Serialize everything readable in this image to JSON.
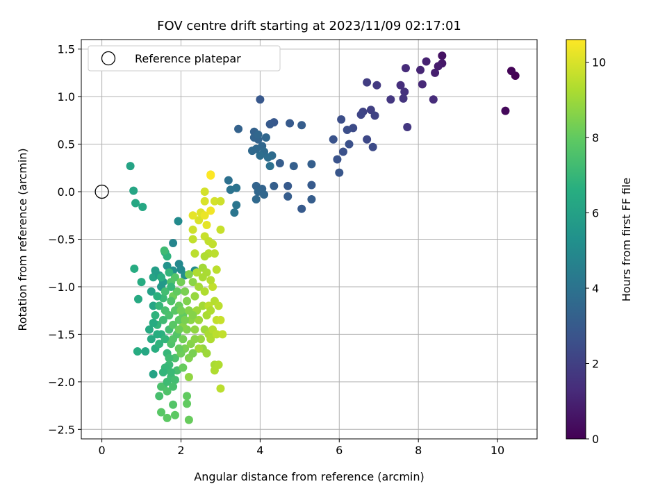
{
  "chart_data": {
    "type": "scatter",
    "title": "FOV centre drift starting at 2023/11/09 02:17:01",
    "xlabel": "Angular distance from reference (arcmin)",
    "ylabel": "Rotation from reference (arcmin)",
    "xlim": [
      -0.52,
      11.0
    ],
    "ylim": [
      -2.6,
      1.6
    ],
    "xticks": [
      0,
      2,
      4,
      6,
      8,
      10
    ],
    "yticks": [
      -2.5,
      -2.0,
      -1.5,
      -1.0,
      -0.5,
      0.0,
      0.5,
      1.0,
      1.5
    ],
    "xtick_labels": [
      "0",
      "2",
      "4",
      "6",
      "8",
      "10"
    ],
    "ytick_labels": [
      "−2.5",
      "−2.0",
      "−1.5",
      "−1.0",
      "−0.5",
      "0.0",
      "0.5",
      "1.0",
      "1.5"
    ],
    "grid": true,
    "legend": {
      "placement": "upper-left",
      "entries": [
        "Reference platepar"
      ]
    },
    "reference_point": {
      "x": 0.0,
      "y": 0.0
    },
    "colormap": "viridis",
    "colorbar": {
      "label": "Hours from first FF file",
      "range": [
        0,
        10.6
      ],
      "ticks": [
        0,
        2,
        4,
        6,
        8,
        10
      ],
      "tick_labels": [
        "0",
        "2",
        "4",
        "6",
        "8",
        "10"
      ]
    },
    "points": [
      {
        "x": 10.45,
        "y": 1.22,
        "c": 0.0
      },
      {
        "x": 10.35,
        "y": 1.27,
        "c": 0.1
      },
      {
        "x": 10.2,
        "y": 0.85,
        "c": 0.2
      },
      {
        "x": 8.6,
        "y": 1.43,
        "c": 0.5
      },
      {
        "x": 8.6,
        "y": 1.35,
        "c": 0.7
      },
      {
        "x": 8.42,
        "y": 1.25,
        "c": 0.9
      },
      {
        "x": 8.5,
        "y": 1.32,
        "c": 0.8
      },
      {
        "x": 8.2,
        "y": 1.37,
        "c": 1.0
      },
      {
        "x": 8.05,
        "y": 1.28,
        "c": 1.1
      },
      {
        "x": 8.1,
        "y": 1.13,
        "c": 1.2
      },
      {
        "x": 8.38,
        "y": 0.97,
        "c": 1.3
      },
      {
        "x": 7.68,
        "y": 1.3,
        "c": 1.3
      },
      {
        "x": 7.55,
        "y": 1.12,
        "c": 1.4
      },
      {
        "x": 7.65,
        "y": 1.05,
        "c": 1.5
      },
      {
        "x": 7.62,
        "y": 0.98,
        "c": 1.6
      },
      {
        "x": 7.72,
        "y": 0.68,
        "c": 1.7
      },
      {
        "x": 7.3,
        "y": 0.97,
        "c": 1.7
      },
      {
        "x": 6.95,
        "y": 1.12,
        "c": 1.8
      },
      {
        "x": 6.7,
        "y": 1.15,
        "c": 1.9
      },
      {
        "x": 6.8,
        "y": 0.86,
        "c": 2.0
      },
      {
        "x": 6.9,
        "y": 0.8,
        "c": 2.1
      },
      {
        "x": 6.6,
        "y": 0.84,
        "c": 2.1
      },
      {
        "x": 6.55,
        "y": 0.81,
        "c": 2.2
      },
      {
        "x": 6.7,
        "y": 0.55,
        "c": 2.3
      },
      {
        "x": 6.85,
        "y": 0.47,
        "c": 2.4
      },
      {
        "x": 6.35,
        "y": 0.67,
        "c": 2.4
      },
      {
        "x": 6.2,
        "y": 0.65,
        "c": 2.5
      },
      {
        "x": 6.05,
        "y": 0.76,
        "c": 2.5
      },
      {
        "x": 6.25,
        "y": 0.5,
        "c": 2.6
      },
      {
        "x": 6.1,
        "y": 0.42,
        "c": 2.6
      },
      {
        "x": 5.85,
        "y": 0.55,
        "c": 2.7
      },
      {
        "x": 5.95,
        "y": 0.34,
        "c": 2.7
      },
      {
        "x": 6.0,
        "y": 0.2,
        "c": 2.8
      },
      {
        "x": 4.0,
        "y": 0.97,
        "c": 2.9
      },
      {
        "x": 4.35,
        "y": 0.73,
        "c": 2.9
      },
      {
        "x": 4.25,
        "y": 0.71,
        "c": 3.0
      },
      {
        "x": 4.75,
        "y": 0.72,
        "c": 3.0
      },
      {
        "x": 5.05,
        "y": 0.7,
        "c": 3.1
      },
      {
        "x": 4.5,
        "y": 0.3,
        "c": 3.1
      },
      {
        "x": 4.85,
        "y": 0.27,
        "c": 3.2
      },
      {
        "x": 5.3,
        "y": 0.29,
        "c": 3.2
      },
      {
        "x": 3.45,
        "y": 0.66,
        "c": 3.3
      },
      {
        "x": 3.85,
        "y": 0.63,
        "c": 3.3
      },
      {
        "x": 3.85,
        "y": 0.57,
        "c": 3.4
      },
      {
        "x": 3.95,
        "y": 0.55,
        "c": 3.4
      },
      {
        "x": 4.15,
        "y": 0.57,
        "c": 3.5
      },
      {
        "x": 4.05,
        "y": 0.48,
        "c": 3.5
      },
      {
        "x": 3.9,
        "y": 0.45,
        "c": 3.6
      },
      {
        "x": 3.8,
        "y": 0.43,
        "c": 3.6
      },
      {
        "x": 4.1,
        "y": 0.42,
        "c": 3.7
      },
      {
        "x": 4.3,
        "y": 0.38,
        "c": 3.7
      },
      {
        "x": 4.2,
        "y": 0.36,
        "c": 3.8
      },
      {
        "x": 4.0,
        "y": 0.38,
        "c": 3.8
      },
      {
        "x": 4.25,
        "y": 0.27,
        "c": 3.9
      },
      {
        "x": 3.95,
        "y": 0.6,
        "c": 3.5
      },
      {
        "x": 3.9,
        "y": 0.06,
        "c": 3.4
      },
      {
        "x": 4.05,
        "y": 0.03,
        "c": 3.4
      },
      {
        "x": 3.95,
        "y": 0.0,
        "c": 3.5
      },
      {
        "x": 4.1,
        "y": -0.03,
        "c": 3.5
      },
      {
        "x": 3.9,
        "y": -0.08,
        "c": 3.6
      },
      {
        "x": 4.35,
        "y": 0.06,
        "c": 3.2
      },
      {
        "x": 4.7,
        "y": 0.06,
        "c": 3.0
      },
      {
        "x": 4.7,
        "y": -0.05,
        "c": 3.1
      },
      {
        "x": 5.05,
        "y": -0.18,
        "c": 3.0
      },
      {
        "x": 5.3,
        "y": 0.07,
        "c": 3.0
      },
      {
        "x": 5.3,
        "y": -0.08,
        "c": 3.1
      },
      {
        "x": 3.2,
        "y": 0.12,
        "c": 3.9
      },
      {
        "x": 3.25,
        "y": 0.02,
        "c": 4.0
      },
      {
        "x": 3.4,
        "y": 0.04,
        "c": 4.0
      },
      {
        "x": 3.4,
        "y": -0.14,
        "c": 4.1
      },
      {
        "x": 3.35,
        "y": -0.22,
        "c": 4.1
      },
      {
        "x": 0.72,
        "y": 0.27,
        "c": 6.1
      },
      {
        "x": 0.8,
        "y": 0.01,
        "c": 6.2
      },
      {
        "x": 0.85,
        "y": -0.12,
        "c": 6.3
      },
      {
        "x": 1.03,
        "y": -0.16,
        "c": 6.3
      },
      {
        "x": 1.93,
        "y": -0.31,
        "c": 5.0
      },
      {
        "x": 1.8,
        "y": -0.54,
        "c": 4.8
      },
      {
        "x": 0.82,
        "y": -0.81,
        "c": 6.5
      },
      {
        "x": 1.0,
        "y": -0.95,
        "c": 6.5
      },
      {
        "x": 0.92,
        "y": -1.13,
        "c": 6.4
      },
      {
        "x": 0.9,
        "y": -1.68,
        "c": 6.5
      },
      {
        "x": 1.1,
        "y": -1.68,
        "c": 6.3
      },
      {
        "x": 1.3,
        "y": -1.92,
        "c": 6.1
      },
      {
        "x": 1.35,
        "y": -1.65,
        "c": 6.6
      },
      {
        "x": 1.2,
        "y": -1.45,
        "c": 6.4
      },
      {
        "x": 1.3,
        "y": -1.2,
        "c": 6.2
      },
      {
        "x": 1.25,
        "y": -1.05,
        "c": 6.0
      },
      {
        "x": 1.3,
        "y": -0.9,
        "c": 6.1
      },
      {
        "x": 1.35,
        "y": -0.83,
        "c": 5.9
      },
      {
        "x": 1.45,
        "y": -0.88,
        "c": 5.8
      },
      {
        "x": 1.55,
        "y": -0.95,
        "c": 5.7
      },
      {
        "x": 1.5,
        "y": -1.0,
        "c": 5.6
      },
      {
        "x": 1.65,
        "y": -0.78,
        "c": 5.4
      },
      {
        "x": 1.8,
        "y": -0.83,
        "c": 5.3
      },
      {
        "x": 1.95,
        "y": -0.76,
        "c": 4.9
      },
      {
        "x": 2.0,
        "y": -0.82,
        "c": 5.0
      },
      {
        "x": 2.1,
        "y": -0.88,
        "c": 5.2
      },
      {
        "x": 2.35,
        "y": -0.83,
        "c": 5.1
      },
      {
        "x": 1.6,
        "y": -0.64,
        "c": 6.5
      },
      {
        "x": 1.65,
        "y": -0.68,
        "c": 6.8
      },
      {
        "x": 1.58,
        "y": -0.62,
        "c": 7.2
      },
      {
        "x": 1.35,
        "y": -1.3,
        "c": 6.8
      },
      {
        "x": 1.45,
        "y": -1.2,
        "c": 7.0
      },
      {
        "x": 1.55,
        "y": -1.12,
        "c": 7.1
      },
      {
        "x": 1.4,
        "y": -1.4,
        "c": 6.9
      },
      {
        "x": 1.5,
        "y": -1.5,
        "c": 6.7
      },
      {
        "x": 1.45,
        "y": -1.6,
        "c": 6.8
      },
      {
        "x": 1.6,
        "y": -1.55,
        "c": 6.9
      },
      {
        "x": 1.7,
        "y": -1.45,
        "c": 7.3
      },
      {
        "x": 1.65,
        "y": -1.7,
        "c": 7.0
      },
      {
        "x": 1.7,
        "y": -1.82,
        "c": 7.1
      },
      {
        "x": 1.75,
        "y": -1.95,
        "c": 7.2
      },
      {
        "x": 1.55,
        "y": -2.05,
        "c": 7.3
      },
      {
        "x": 1.45,
        "y": -2.15,
        "c": 7.4
      },
      {
        "x": 1.5,
        "y": -2.05,
        "c": 7.5
      },
      {
        "x": 1.65,
        "y": -2.1,
        "c": 7.6
      },
      {
        "x": 1.85,
        "y": -1.98,
        "c": 7.3
      },
      {
        "x": 1.8,
        "y": -2.24,
        "c": 7.7
      },
      {
        "x": 1.5,
        "y": -2.32,
        "c": 7.8
      },
      {
        "x": 1.65,
        "y": -2.38,
        "c": 7.9
      },
      {
        "x": 1.85,
        "y": -2.35,
        "c": 7.9
      },
      {
        "x": 2.15,
        "y": -2.23,
        "c": 8.0
      },
      {
        "x": 2.2,
        "y": -2.4,
        "c": 8.1
      },
      {
        "x": 2.15,
        "y": -2.15,
        "c": 8.0
      },
      {
        "x": 1.9,
        "y": -1.88,
        "c": 7.4
      },
      {
        "x": 1.85,
        "y": -1.75,
        "c": 7.5
      },
      {
        "x": 1.75,
        "y": -1.6,
        "c": 7.6
      },
      {
        "x": 1.9,
        "y": -1.5,
        "c": 7.7
      },
      {
        "x": 1.8,
        "y": -1.4,
        "c": 7.8
      },
      {
        "x": 1.95,
        "y": -1.35,
        "c": 7.9
      },
      {
        "x": 2.05,
        "y": -1.3,
        "c": 8.0
      },
      {
        "x": 1.95,
        "y": -1.2,
        "c": 8.1
      },
      {
        "x": 1.8,
        "y": -1.1,
        "c": 8.2
      },
      {
        "x": 1.9,
        "y": -1.05,
        "c": 8.0
      },
      {
        "x": 1.75,
        "y": -0.95,
        "c": 7.6
      },
      {
        "x": 1.85,
        "y": -0.9,
        "c": 7.7
      },
      {
        "x": 2.0,
        "y": -0.95,
        "c": 8.3
      },
      {
        "x": 2.1,
        "y": -1.05,
        "c": 8.4
      },
      {
        "x": 2.15,
        "y": -1.15,
        "c": 8.5
      },
      {
        "x": 2.2,
        "y": -1.25,
        "c": 8.6
      },
      {
        "x": 2.25,
        "y": -1.35,
        "c": 8.7
      },
      {
        "x": 2.15,
        "y": -1.45,
        "c": 8.5
      },
      {
        "x": 2.05,
        "y": -1.55,
        "c": 8.3
      },
      {
        "x": 2.1,
        "y": -1.65,
        "c": 8.4
      },
      {
        "x": 2.0,
        "y": -1.7,
        "c": 8.2
      },
      {
        "x": 2.2,
        "y": -1.75,
        "c": 8.5
      },
      {
        "x": 2.2,
        "y": -1.95,
        "c": 8.8
      },
      {
        "x": 1.95,
        "y": -1.65,
        "c": 8.1
      },
      {
        "x": 2.05,
        "y": -1.42,
        "c": 8.6
      },
      {
        "x": 2.2,
        "y": -0.87,
        "c": 8.5
      },
      {
        "x": 2.3,
        "y": -0.95,
        "c": 8.7
      },
      {
        "x": 2.35,
        "y": -1.1,
        "c": 8.9
      },
      {
        "x": 2.4,
        "y": -1.25,
        "c": 9.0
      },
      {
        "x": 2.45,
        "y": -1.0,
        "c": 9.1
      },
      {
        "x": 2.55,
        "y": -0.9,
        "c": 9.2
      },
      {
        "x": 2.6,
        "y": -1.05,
        "c": 9.3
      },
      {
        "x": 2.55,
        "y": -1.2,
        "c": 9.1
      },
      {
        "x": 2.65,
        "y": -1.3,
        "c": 9.2
      },
      {
        "x": 2.6,
        "y": -1.45,
        "c": 9.0
      },
      {
        "x": 2.5,
        "y": -1.55,
        "c": 8.9
      },
      {
        "x": 2.55,
        "y": -1.65,
        "c": 8.8
      },
      {
        "x": 2.65,
        "y": -1.7,
        "c": 9.0
      },
      {
        "x": 2.7,
        "y": -1.5,
        "c": 9.2
      },
      {
        "x": 2.45,
        "y": -1.65,
        "c": 9.1
      },
      {
        "x": 2.45,
        "y": -1.35,
        "c": 9.0
      },
      {
        "x": 2.3,
        "y": -1.3,
        "c": 8.6
      },
      {
        "x": 2.35,
        "y": -1.45,
        "c": 8.8
      },
      {
        "x": 2.75,
        "y": -1.55,
        "c": 9.3
      },
      {
        "x": 2.8,
        "y": -1.45,
        "c": 9.4
      },
      {
        "x": 2.7,
        "y": -1.2,
        "c": 9.5
      },
      {
        "x": 2.8,
        "y": -1.0,
        "c": 9.6
      },
      {
        "x": 2.85,
        "y": -1.15,
        "c": 9.4
      },
      {
        "x": 2.95,
        "y": -1.2,
        "c": 9.5
      },
      {
        "x": 2.9,
        "y": -1.35,
        "c": 9.6
      },
      {
        "x": 3.0,
        "y": -1.35,
        "c": 9.7
      },
      {
        "x": 2.9,
        "y": -1.5,
        "c": 9.5
      },
      {
        "x": 3.05,
        "y": -1.5,
        "c": 9.6
      },
      {
        "x": 2.85,
        "y": -1.82,
        "c": 9.2
      },
      {
        "x": 2.95,
        "y": -1.82,
        "c": 9.3
      },
      {
        "x": 2.85,
        "y": -1.88,
        "c": 9.3
      },
      {
        "x": 3.0,
        "y": -2.07,
        "c": 9.5
      },
      {
        "x": 2.75,
        "y": -1.25,
        "c": 9.3
      },
      {
        "x": 2.4,
        "y": -0.85,
        "c": 9.3
      },
      {
        "x": 2.35,
        "y": -0.65,
        "c": 9.5
      },
      {
        "x": 2.3,
        "y": -0.5,
        "c": 9.6
      },
      {
        "x": 2.3,
        "y": -0.4,
        "c": 9.8
      },
      {
        "x": 2.45,
        "y": -0.3,
        "c": 10.0
      },
      {
        "x": 2.5,
        "y": -0.22,
        "c": 10.1
      },
      {
        "x": 2.3,
        "y": -0.25,
        "c": 10.2
      },
      {
        "x": 2.6,
        "y": -0.25,
        "c": 10.3
      },
      {
        "x": 2.75,
        "y": -0.2,
        "c": 10.4
      },
      {
        "x": 2.65,
        "y": -0.35,
        "c": 10.2
      },
      {
        "x": 2.6,
        "y": 0.0,
        "c": 9.9
      },
      {
        "x": 2.6,
        "y": -0.1,
        "c": 10.0
      },
      {
        "x": 2.6,
        "y": -0.47,
        "c": 9.7
      },
      {
        "x": 2.7,
        "y": -0.52,
        "c": 9.6
      },
      {
        "x": 2.75,
        "y": 0.18,
        "c": 10.5
      },
      {
        "x": 2.75,
        "y": 0.17,
        "c": 10.6
      },
      {
        "x": 2.85,
        "y": -0.1,
        "c": 9.9
      },
      {
        "x": 3.0,
        "y": -0.1,
        "c": 9.8
      },
      {
        "x": 3.0,
        "y": -0.4,
        "c": 9.7
      },
      {
        "x": 2.7,
        "y": -0.65,
        "c": 9.4
      },
      {
        "x": 2.85,
        "y": -0.65,
        "c": 9.5
      },
      {
        "x": 2.8,
        "y": -0.55,
        "c": 9.6
      },
      {
        "x": 2.55,
        "y": -0.8,
        "c": 9.1
      },
      {
        "x": 2.65,
        "y": -0.85,
        "c": 9.2
      },
      {
        "x": 2.75,
        "y": -0.93,
        "c": 9.4
      },
      {
        "x": 2.6,
        "y": -0.68,
        "c": 9.3
      },
      {
        "x": 2.9,
        "y": -0.82,
        "c": 9.5
      },
      {
        "x": 1.6,
        "y": -1.25,
        "c": 7.4
      },
      {
        "x": 1.7,
        "y": -1.3,
        "c": 7.5
      },
      {
        "x": 1.55,
        "y": -1.35,
        "c": 7.2
      },
      {
        "x": 1.75,
        "y": -1.15,
        "c": 7.6
      },
      {
        "x": 1.6,
        "y": -1.05,
        "c": 7.3
      },
      {
        "x": 1.4,
        "y": -1.1,
        "c": 6.7
      },
      {
        "x": 1.5,
        "y": -0.9,
        "c": 6.6
      },
      {
        "x": 1.7,
        "y": -0.85,
        "c": 6.9
      },
      {
        "x": 1.75,
        "y": -1.0,
        "c": 7.0
      },
      {
        "x": 1.85,
        "y": -1.25,
        "c": 7.8
      },
      {
        "x": 1.95,
        "y": -1.45,
        "c": 8.2
      },
      {
        "x": 1.8,
        "y": -1.55,
        "c": 7.7
      },
      {
        "x": 1.7,
        "y": -1.75,
        "c": 7.2
      },
      {
        "x": 1.6,
        "y": -1.85,
        "c": 7.0
      },
      {
        "x": 1.75,
        "y": -1.9,
        "c": 7.1
      },
      {
        "x": 1.55,
        "y": -1.9,
        "c": 6.9
      },
      {
        "x": 1.65,
        "y": -2.0,
        "c": 7.2
      },
      {
        "x": 1.8,
        "y": -2.05,
        "c": 7.4
      },
      {
        "x": 1.4,
        "y": -1.5,
        "c": 6.6
      },
      {
        "x": 1.3,
        "y": -1.38,
        "c": 6.5
      },
      {
        "x": 1.25,
        "y": -1.55,
        "c": 6.4
      },
      {
        "x": 2.05,
        "y": -1.85,
        "c": 8.1
      },
      {
        "x": 2.0,
        "y": -1.25,
        "c": 8.3
      },
      {
        "x": 2.25,
        "y": -1.6,
        "c": 8.6
      },
      {
        "x": 2.3,
        "y": -1.7,
        "c": 8.4
      },
      {
        "x": 2.35,
        "y": -1.55,
        "c": 8.7
      },
      {
        "x": 2.1,
        "y": -1.35,
        "c": 8.4
      }
    ]
  }
}
